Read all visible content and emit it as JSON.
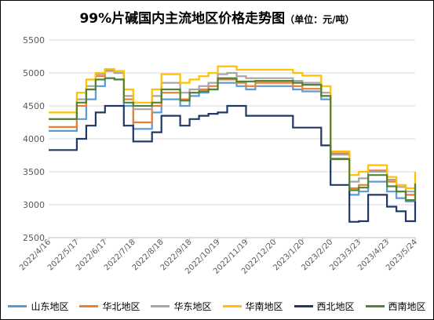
{
  "chart_data": {
    "type": "line",
    "title": "99%片碱国内主流地区价格走势图",
    "subtitle": "（单位：元/吨）",
    "ylim": [
      2500,
      5500
    ],
    "yticks": [
      2500,
      3000,
      3500,
      4000,
      4500,
      5000,
      5500
    ],
    "grid": true,
    "legend": "bottom",
    "categories": [
      "2022/4/16",
      "2022/5/17",
      "2022/6/17",
      "2022/7/18",
      "2022/8/18",
      "2022/9/18",
      "2022/10/19",
      "2022/11/19",
      "2022/12/20",
      "2023/1/20",
      "2023/2/20",
      "2023/3/23",
      "2023/4/23",
      "2023/5/24"
    ],
    "x": [
      "2022/4/16",
      "2022/4/26",
      "2022/5/6",
      "2022/5/17",
      "2022/5/27",
      "2022/6/6",
      "2022/6/17",
      "2022/6/27",
      "2022/7/7",
      "2022/7/18",
      "2022/7/28",
      "2022/8/7",
      "2022/8/18",
      "2022/8/28",
      "2022/9/7",
      "2022/9/18",
      "2022/9/28",
      "2022/10/8",
      "2022/10/19",
      "2022/10/29",
      "2022/11/8",
      "2022/11/19",
      "2022/11/29",
      "2022/12/9",
      "2022/12/20",
      "2022/12/30",
      "2023/1/9",
      "2023/1/20",
      "2023/1/30",
      "2023/2/9",
      "2023/2/20",
      "2023/3/2",
      "2023/3/12",
      "2023/3/23",
      "2023/4/2",
      "2023/4/12",
      "2023/4/23",
      "2023/5/3",
      "2023/5/13",
      "2023/5/24"
    ],
    "series": [
      {
        "name": "山东地区",
        "color": "#5b9bd5",
        "values": [
          4120,
          4120,
          4120,
          4300,
          4600,
          4800,
          4920,
          4900,
          4500,
          4150,
          4150,
          4400,
          4600,
          4600,
          4500,
          4650,
          4700,
          4750,
          4850,
          4850,
          4800,
          4750,
          4800,
          4800,
          4800,
          4800,
          4750,
          4720,
          4720,
          4600,
          3700,
          3700,
          3150,
          3200,
          3350,
          3350,
          3200,
          3100,
          3050,
          3200
        ]
      },
      {
        "name": "华北地区",
        "color": "#ed7d31",
        "values": [
          4180,
          4180,
          4180,
          4500,
          4750,
          4950,
          5050,
          5000,
          4600,
          4250,
          4250,
          4500,
          4700,
          4700,
          4600,
          4700,
          4750,
          4800,
          4900,
          4900,
          4850,
          4800,
          4850,
          4850,
          4850,
          4850,
          4800,
          4760,
          4760,
          4650,
          3780,
          3780,
          3250,
          3300,
          3520,
          3520,
          3350,
          3200,
          3150,
          3280
        ]
      },
      {
        "name": "华东地区",
        "color": "#a5a5a5",
        "values": [
          4300,
          4300,
          4300,
          4600,
          4800,
          4980,
          5030,
          5000,
          4650,
          4450,
          4450,
          4650,
          4850,
          4850,
          4700,
          4750,
          4800,
          4850,
          4980,
          5000,
          4950,
          4920,
          4920,
          4920,
          4920,
          4920,
          4880,
          4850,
          4850,
          4700,
          3760,
          3760,
          3350,
          3400,
          3500,
          3500,
          3380,
          3270,
          3200,
          3350
        ]
      },
      {
        "name": "华南地区",
        "color": "#ffc000",
        "values": [
          4400,
          4400,
          4400,
          4700,
          4900,
          5000,
          5060,
          5030,
          4750,
          4550,
          4550,
          4750,
          4980,
          4980,
          4850,
          4900,
          4950,
          5000,
          5100,
          5100,
          5050,
          5050,
          5050,
          5050,
          5050,
          5050,
          5000,
          4960,
          4960,
          4800,
          3810,
          3810,
          3450,
          3500,
          3600,
          3600,
          3420,
          3300,
          3250,
          3500
        ]
      },
      {
        "name": "西北地区",
        "color": "#203864",
        "values": [
          3830,
          3830,
          3830,
          4000,
          4200,
          4400,
          4500,
          4500,
          4200,
          3960,
          3960,
          4100,
          4350,
          4350,
          4200,
          4300,
          4350,
          4380,
          4400,
          4500,
          4500,
          4350,
          4350,
          4350,
          4350,
          4350,
          4170,
          4170,
          4170,
          3900,
          3300,
          3300,
          2740,
          2750,
          3150,
          3150,
          2970,
          2900,
          2750,
          3050
        ]
      },
      {
        "name": "西南地区",
        "color": "#548235",
        "values": [
          4300,
          4300,
          4300,
          4550,
          4750,
          4900,
          4920,
          4900,
          4550,
          4500,
          4500,
          4550,
          4750,
          4750,
          4580,
          4700,
          4720,
          4750,
          4920,
          4920,
          4870,
          4870,
          4880,
          4880,
          4880,
          4880,
          4850,
          4820,
          4820,
          4650,
          3690,
          3690,
          3220,
          3260,
          3450,
          3450,
          3280,
          3200,
          3070,
          3320
        ]
      }
    ]
  }
}
